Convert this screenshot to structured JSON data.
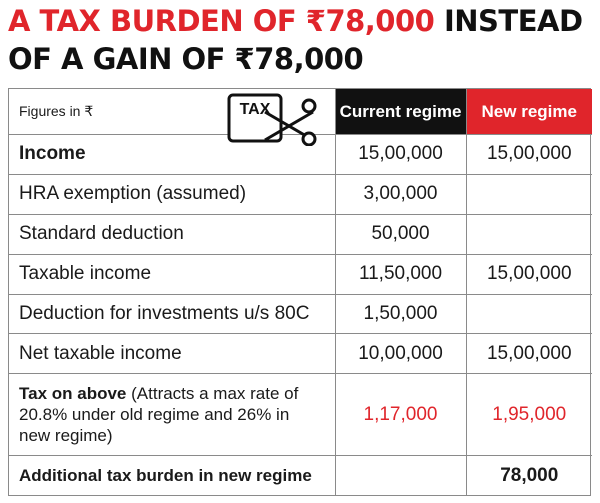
{
  "headline": {
    "red": "A TAX BURDEN OF ₹78,000",
    "black_inline": "INSTEAD",
    "black_line2": "OF A GAIN OF ₹78,000"
  },
  "table": {
    "figures_note": "Figures in ₹",
    "tax_icon_label": "TAX",
    "headers": {
      "current": "Current regime",
      "new": "New regime"
    },
    "rows": [
      {
        "label": "Income",
        "current": "15,00,000",
        "new": "15,00,000"
      },
      {
        "label": "HRA exemption (assumed)",
        "current": "3,00,000",
        "new": ""
      },
      {
        "label": "Standard deduction",
        "current": "50,000",
        "new": ""
      },
      {
        "label": "Taxable income",
        "current": "11,50,000",
        "new": "15,00,000"
      },
      {
        "label": "Deduction for investments u/s 80C",
        "current": "1,50,000",
        "new": ""
      },
      {
        "label": "Net taxable income",
        "current": "10,00,000",
        "new": "15,00,000"
      },
      {
        "label": "Tax on above",
        "label_note": "(Attracts a max rate of 20.8% under old regime and 26% in new regime)",
        "current": "1,17,000",
        "new": "1,95,000"
      },
      {
        "label": "Additional tax burden in new regime",
        "current": "",
        "new": "78,000"
      }
    ]
  },
  "colors": {
    "accent_red": "#e0252b",
    "header_black": "#111111"
  }
}
